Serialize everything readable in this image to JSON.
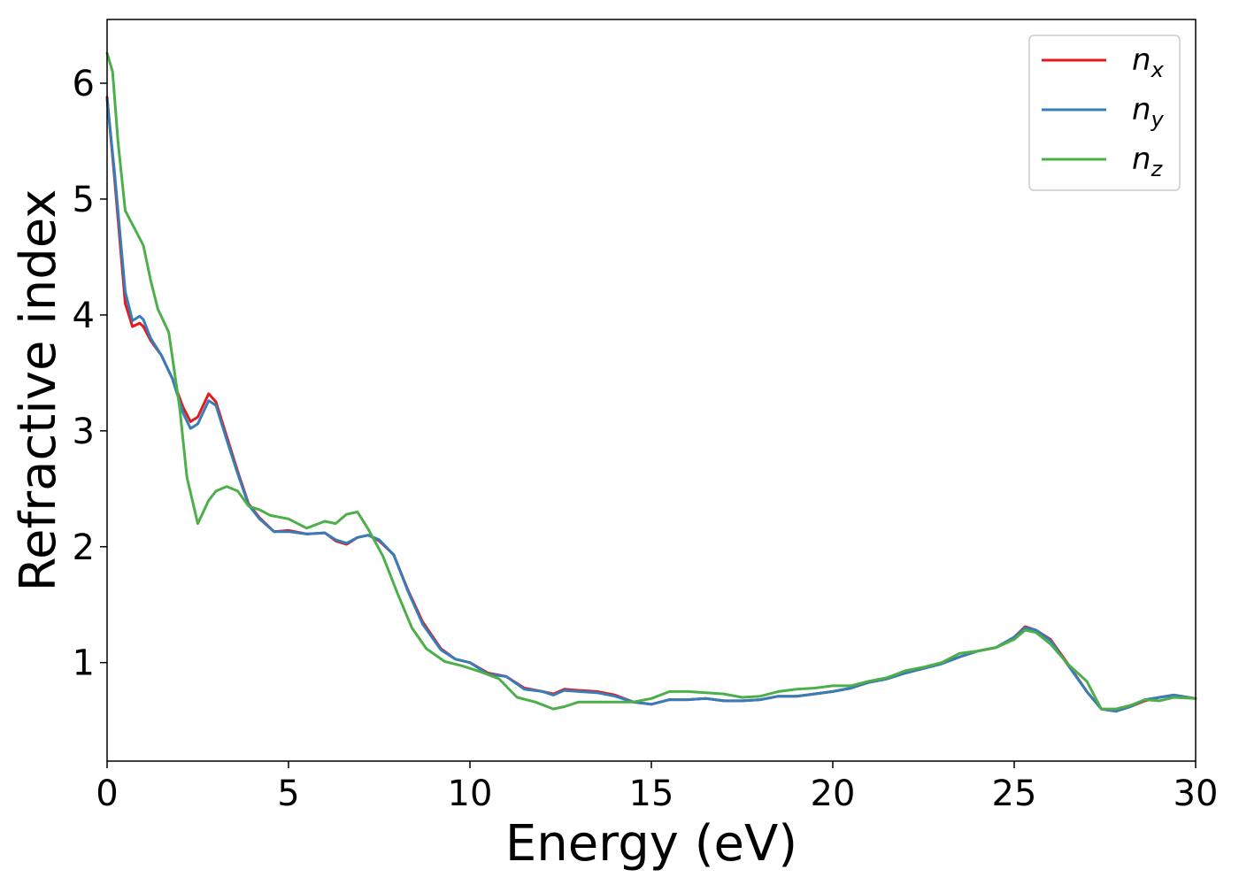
{
  "chart_data": {
    "type": "line",
    "title": "",
    "xlabel": "Energy (eV)",
    "ylabel": "Refractive index",
    "xlim": [
      0,
      30
    ],
    "ylim": [
      0.15,
      6.55
    ],
    "xticks": [
      0,
      5,
      10,
      15,
      20,
      25,
      30
    ],
    "yticks": [
      1,
      2,
      3,
      4,
      5,
      6
    ],
    "grid": false,
    "legend_position": "top-right",
    "series": [
      {
        "name": "n",
        "subscript": "x",
        "color": "#e41a1c",
        "x": [
          0,
          0.2,
          0.5,
          0.7,
          0.9,
          1.0,
          1.2,
          1.5,
          1.8,
          2.1,
          2.3,
          2.5,
          2.8,
          3.0,
          3.3,
          3.6,
          3.9,
          4.2,
          4.6,
          5.0,
          5.5,
          6.0,
          6.3,
          6.6,
          6.9,
          7.2,
          7.5,
          7.9,
          8.3,
          8.7,
          9.2,
          9.6,
          10.0,
          10.5,
          11.0,
          11.5,
          12.0,
          12.3,
          12.6,
          13.0,
          13.5,
          14.0,
          14.5,
          15.0,
          15.5,
          16.0,
          16.5,
          17.0,
          17.5,
          18.0,
          18.5,
          19.0,
          19.5,
          20.0,
          20.5,
          21.0,
          21.5,
          22.0,
          22.5,
          23.0,
          23.5,
          24.0,
          24.5,
          25.0,
          25.3,
          25.6,
          26.0,
          26.5,
          27.0,
          27.4,
          27.8,
          28.2,
          28.6,
          29.0,
          29.4,
          30.0
        ],
        "y": [
          5.88,
          5.2,
          4.1,
          3.9,
          3.93,
          3.9,
          3.78,
          3.65,
          3.45,
          3.2,
          3.08,
          3.12,
          3.32,
          3.25,
          2.95,
          2.65,
          2.37,
          2.25,
          2.13,
          2.14,
          2.11,
          2.12,
          2.05,
          2.02,
          2.08,
          2.1,
          2.05,
          1.93,
          1.62,
          1.35,
          1.12,
          1.03,
          1.0,
          0.91,
          0.88,
          0.78,
          0.75,
          0.73,
          0.77,
          0.76,
          0.75,
          0.72,
          0.66,
          0.64,
          0.68,
          0.68,
          0.69,
          0.67,
          0.67,
          0.68,
          0.71,
          0.71,
          0.73,
          0.75,
          0.78,
          0.83,
          0.86,
          0.91,
          0.95,
          0.99,
          1.05,
          1.1,
          1.13,
          1.22,
          1.31,
          1.28,
          1.2,
          0.98,
          0.75,
          0.6,
          0.58,
          0.62,
          0.67,
          0.7,
          0.72,
          0.69
        ]
      },
      {
        "name": "n",
        "subscript": "y",
        "color": "#377eb8",
        "x": [
          0,
          0.2,
          0.5,
          0.7,
          0.9,
          1.0,
          1.2,
          1.5,
          1.8,
          2.1,
          2.3,
          2.5,
          2.8,
          3.0,
          3.3,
          3.6,
          3.9,
          4.2,
          4.6,
          5.0,
          5.5,
          6.0,
          6.3,
          6.6,
          6.9,
          7.2,
          7.5,
          7.9,
          8.3,
          8.7,
          9.2,
          9.6,
          10.0,
          10.5,
          11.0,
          11.5,
          12.0,
          12.3,
          12.6,
          13.0,
          13.5,
          14.0,
          14.5,
          15.0,
          15.5,
          16.0,
          16.5,
          17.0,
          17.5,
          18.0,
          18.5,
          19.0,
          19.5,
          20.0,
          20.5,
          21.0,
          21.5,
          22.0,
          22.5,
          23.0,
          23.5,
          24.0,
          24.5,
          25.0,
          25.3,
          25.6,
          26.0,
          26.5,
          27.0,
          27.4,
          27.8,
          28.2,
          28.6,
          29.0,
          29.4,
          30.0
        ],
        "y": [
          5.86,
          5.25,
          4.2,
          3.95,
          3.99,
          3.96,
          3.8,
          3.65,
          3.45,
          3.15,
          3.02,
          3.06,
          3.26,
          3.22,
          2.92,
          2.63,
          2.36,
          2.24,
          2.13,
          2.13,
          2.11,
          2.12,
          2.06,
          2.03,
          2.08,
          2.1,
          2.06,
          1.93,
          1.61,
          1.33,
          1.11,
          1.03,
          1.0,
          0.9,
          0.88,
          0.77,
          0.75,
          0.72,
          0.76,
          0.75,
          0.74,
          0.71,
          0.66,
          0.64,
          0.68,
          0.68,
          0.69,
          0.67,
          0.67,
          0.68,
          0.71,
          0.71,
          0.73,
          0.75,
          0.78,
          0.83,
          0.86,
          0.91,
          0.95,
          0.99,
          1.05,
          1.1,
          1.13,
          1.22,
          1.3,
          1.28,
          1.19,
          0.97,
          0.75,
          0.6,
          0.58,
          0.62,
          0.68,
          0.7,
          0.72,
          0.69
        ]
      },
      {
        "name": "n",
        "subscript": "z",
        "color": "#4daf4a",
        "x": [
          0,
          0.15,
          0.3,
          0.5,
          0.8,
          1.0,
          1.2,
          1.4,
          1.7,
          2.0,
          2.2,
          2.5,
          2.8,
          3.0,
          3.3,
          3.6,
          3.9,
          4.2,
          4.5,
          5.0,
          5.5,
          6.0,
          6.3,
          6.6,
          6.9,
          7.2,
          7.6,
          8.0,
          8.4,
          8.8,
          9.3,
          9.8,
          10.3,
          10.8,
          11.3,
          11.8,
          12.3,
          12.6,
          13.0,
          13.5,
          14.0,
          14.5,
          15.0,
          15.5,
          16.0,
          16.5,
          17.0,
          17.5,
          18.0,
          18.5,
          19.0,
          19.5,
          20.0,
          20.5,
          21.0,
          21.5,
          22.0,
          22.5,
          23.0,
          23.5,
          24.0,
          24.5,
          25.0,
          25.3,
          25.6,
          26.0,
          26.5,
          27.0,
          27.4,
          27.8,
          28.2,
          28.6,
          29.0,
          29.4,
          30.0
        ],
        "y": [
          6.26,
          6.1,
          5.5,
          4.9,
          4.72,
          4.6,
          4.3,
          4.05,
          3.85,
          3.2,
          2.6,
          2.2,
          2.4,
          2.48,
          2.52,
          2.48,
          2.35,
          2.32,
          2.27,
          2.24,
          2.16,
          2.22,
          2.2,
          2.28,
          2.3,
          2.15,
          1.92,
          1.6,
          1.3,
          1.12,
          1.01,
          0.97,
          0.92,
          0.86,
          0.7,
          0.66,
          0.6,
          0.62,
          0.66,
          0.66,
          0.66,
          0.66,
          0.69,
          0.75,
          0.75,
          0.74,
          0.73,
          0.7,
          0.71,
          0.75,
          0.77,
          0.78,
          0.8,
          0.8,
          0.84,
          0.87,
          0.93,
          0.96,
          1.0,
          1.08,
          1.1,
          1.13,
          1.2,
          1.28,
          1.26,
          1.16,
          0.98,
          0.84,
          0.6,
          0.6,
          0.63,
          0.68,
          0.67,
          0.7,
          0.69
        ]
      }
    ]
  }
}
